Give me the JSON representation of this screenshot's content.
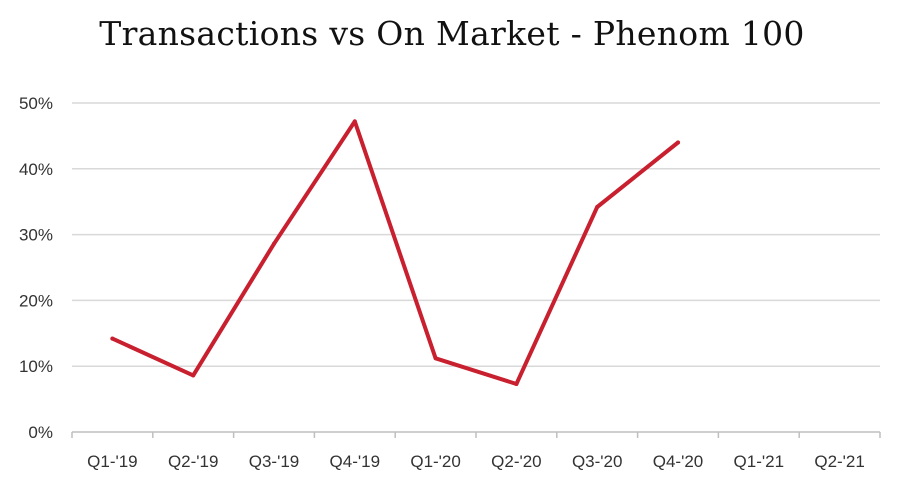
{
  "chart_data": {
    "type": "line",
    "title": "Transactions vs On Market - Phenom 100",
    "xlabel": "",
    "ylabel": "",
    "categories": [
      "Q1-'19",
      "Q2-'19",
      "Q3-'19",
      "Q4-'19",
      "Q1-'20",
      "Q2-'20",
      "Q3-'20",
      "Q4-'20",
      "Q1-'21",
      "Q2-'21"
    ],
    "series": [
      {
        "values": [
          14.2,
          8.6,
          28.6,
          47.2,
          11.2,
          7.3,
          34.2,
          44.0,
          null,
          null
        ]
      }
    ],
    "ylim": [
      0,
      50
    ],
    "yticks": [
      "0%",
      "10%",
      "20%",
      "30%",
      "40%",
      "50%"
    ],
    "grid": true,
    "legend": "none",
    "colors": {
      "line": "#C8202F",
      "grid": "#D9D9D9",
      "axis": "#BFBFBF"
    }
  }
}
